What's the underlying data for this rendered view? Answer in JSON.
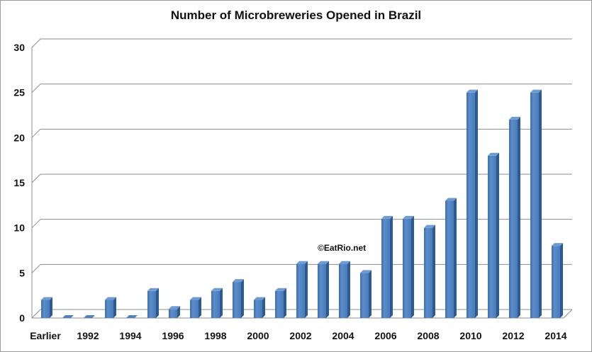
{
  "chart_data": {
    "type": "bar",
    "title": "Number of Microbreweries Opened in Brazil",
    "categories": [
      "Earlier",
      "1991",
      "1992",
      "1993",
      "1994",
      "1995",
      "1996",
      "1997",
      "1998",
      "1999",
      "2000",
      "2001",
      "2002",
      "2003",
      "2004",
      "2005",
      "2006",
      "2007",
      "2008",
      "2009",
      "2010",
      "2011",
      "2012",
      "2013",
      "2014"
    ],
    "x_tick_labels": [
      "Earlier",
      "",
      "1992",
      "",
      "1994",
      "",
      "1996",
      "",
      "1998",
      "",
      "2000",
      "",
      "2002",
      "",
      "2004",
      "",
      "2006",
      "",
      "2008",
      "",
      "2010",
      "",
      "2012",
      "",
      "2014"
    ],
    "values": [
      2,
      0,
      0,
      2,
      0,
      3,
      1,
      2,
      3,
      4,
      2,
      3,
      6,
      6,
      6,
      5,
      11,
      11,
      10,
      13,
      25,
      18,
      22,
      25,
      8
    ],
    "ylim": [
      0,
      30
    ],
    "yticks": [
      0,
      5,
      10,
      15,
      20,
      25,
      30
    ],
    "grid": true,
    "bar_color": "#4F81BD",
    "annotation": "©EatRio.net"
  }
}
